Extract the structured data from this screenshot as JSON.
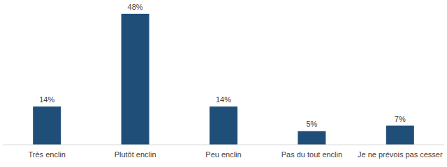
{
  "chart_data": {
    "type": "bar",
    "categories": [
      "Très enclin",
      "Plutôt enclin",
      "Peu enclin",
      "Pas du tout enclin",
      "Je ne prévois pas cesser"
    ],
    "values": [
      14,
      48,
      14,
      5,
      7
    ],
    "value_labels": [
      "14%",
      "48%",
      "14%",
      "5%",
      "7%"
    ],
    "color": "#1f4e79",
    "ylim": [
      0,
      50
    ],
    "data_labels": true,
    "tick_labels": "x",
    "grid": false
  }
}
